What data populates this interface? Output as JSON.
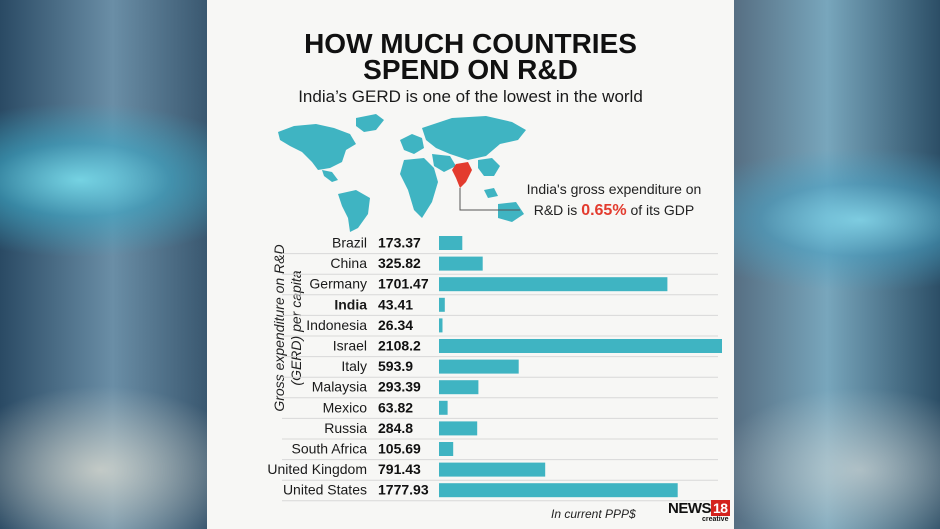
{
  "header": {
    "title_line1": "HOW MUCH COUNTRIES",
    "title_line2": "SPEND ON R&D",
    "subtitle": "India’s GERD is one of the lowest in the world"
  },
  "callout": {
    "line1": "India's gross expenditure on",
    "line2_prefix": "R&D is ",
    "highlight": "0.65%",
    "line2_suffix": " of its GDP"
  },
  "colors": {
    "bar": "#3fb4c2",
    "map": "#3fb4c2",
    "highlight": "#e33b2e"
  },
  "chart_data": {
    "type": "bar",
    "orientation": "horizontal",
    "title": "HOW MUCH COUNTRIES SPEND ON R&D",
    "ylabel": "Gross expenditure on R&D (GERD) per capita",
    "unit_note": "In current PPP$",
    "highlight_category": "India",
    "categories": [
      "Brazil",
      "China",
      "Germany",
      "India",
      "Indonesia",
      "Israel",
      "Italy",
      "Malaysia",
      "Mexico",
      "Russia",
      "South Africa",
      "United Kingdom",
      "United States"
    ],
    "value_labels": [
      "173.37",
      "325.82",
      "1701.47",
      "43.41",
      "26.34",
      "2108.2",
      "593.9",
      "293.39",
      "63.82",
      "284.8",
      "105.69",
      "791.43",
      "1777.93"
    ],
    "values": [
      173.37,
      325.82,
      1701.47,
      43.41,
      26.34,
      2108.2,
      593.9,
      293.39,
      63.82,
      284.8,
      105.69,
      791.43,
      1777.93
    ],
    "xlim": [
      0,
      2108.2
    ]
  },
  "footer": {
    "note": "In current PPP$",
    "logo_text": "NEWS",
    "logo_num": "18",
    "logo_sub": "creative"
  }
}
